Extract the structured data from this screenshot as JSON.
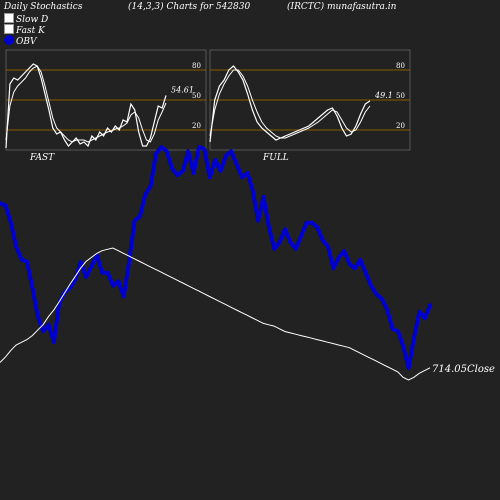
{
  "header": {
    "title": "Daily Stochastics",
    "params": "(14,3,3) Charts for 542830",
    "symbol": "(IRCTC) munafasutra.in"
  },
  "legend": [
    {
      "label": "Slow  D",
      "color": "#ffffff"
    },
    {
      "label": "Fast K",
      "color": "#ffffff"
    },
    {
      "label": "OBV",
      "color": "#0000cc"
    }
  ],
  "colors": {
    "background": "#222222",
    "panel_grid": "#8b5a00",
    "obv": "#0000cc",
    "close": "#ffffff"
  },
  "chart_data": [
    {
      "type": "line",
      "panel": "FAST",
      "title": "FAST",
      "yticks": [
        20,
        50,
        80
      ],
      "ylim": [
        0,
        100
      ],
      "last_value_label": "54.61",
      "series": [
        {
          "name": "Fast K",
          "values": [
            2,
            66,
            72,
            70,
            74,
            78,
            82,
            86,
            84,
            72,
            56,
            40,
            22,
            16,
            18,
            10,
            4,
            8,
            12,
            6,
            8,
            4,
            14,
            10,
            18,
            14,
            22,
            18,
            24,
            20,
            30,
            28,
            46,
            40,
            18,
            4,
            4,
            12,
            28,
            44,
            42,
            54.61
          ]
        },
        {
          "name": "Slow D",
          "values": [
            10,
            44,
            58,
            64,
            68,
            72,
            78,
            82,
            84,
            78,
            64,
            48,
            32,
            22,
            18,
            14,
            10,
            8,
            10,
            10,
            10,
            8,
            10,
            12,
            14,
            16,
            18,
            19,
            21,
            22,
            24,
            27,
            35,
            38,
            32,
            20,
            10,
            8,
            16,
            30,
            38,
            47
          ]
        }
      ]
    },
    {
      "type": "line",
      "panel": "FULL",
      "title": "FULL",
      "yticks": [
        20,
        50,
        80
      ],
      "ylim": [
        0,
        100
      ],
      "last_value_label": "49.1",
      "series": [
        {
          "name": "Fast K",
          "values": [
            8,
            50,
            64,
            70,
            80,
            84,
            78,
            70,
            56,
            40,
            28,
            22,
            18,
            14,
            10,
            12,
            14,
            16,
            18,
            20,
            22,
            24,
            28,
            32,
            36,
            40,
            42,
            34,
            22,
            14,
            16,
            24,
            36,
            46,
            49.1
          ]
        },
        {
          "name": "Slow D",
          "values": [
            14,
            40,
            56,
            66,
            74,
            80,
            80,
            74,
            64,
            50,
            38,
            28,
            22,
            18,
            14,
            12,
            12,
            14,
            16,
            18,
            20,
            22,
            25,
            28,
            32,
            36,
            40,
            38,
            30,
            22,
            18,
            20,
            28,
            38,
            44
          ]
        }
      ]
    },
    {
      "type": "line",
      "panel": "main",
      "last_value_label": "714.05Close",
      "series": [
        {
          "name": "OBV",
          "values": [
            74,
            73,
            65,
            54,
            48,
            47,
            35,
            22,
            15,
            18,
            10,
            28,
            33,
            35,
            39,
            47,
            40,
            45,
            50,
            42,
            42,
            36,
            38,
            31,
            47,
            66,
            68,
            78,
            82,
            97,
            100,
            98,
            90,
            87,
            89,
            98,
            88,
            100,
            99,
            86,
            94,
            89,
            96,
            98,
            92,
            86,
            88,
            80,
            66,
            77,
            63,
            53,
            56,
            62,
            56,
            53,
            59,
            65,
            65,
            63,
            57,
            54,
            44,
            49,
            52,
            46,
            44,
            48,
            42,
            36,
            32,
            30,
            25,
            16,
            15,
            8,
            -2,
            12,
            24,
            21,
            27
          ]
        },
        {
          "name": "Close",
          "values": [
            722,
            730,
            740,
            748,
            752,
            756,
            762,
            770,
            778,
            790,
            800,
            812,
            825,
            838,
            850,
            862,
            872,
            878,
            884,
            888,
            890,
            892,
            888,
            884,
            880,
            876,
            872,
            868,
            864,
            860,
            856,
            852,
            848,
            844,
            840,
            836,
            832,
            828,
            824,
            820,
            816,
            812,
            808,
            804,
            800,
            796,
            792,
            788,
            784,
            780,
            778,
            776,
            772,
            768,
            766,
            764,
            762,
            760,
            758,
            756,
            754,
            752,
            750,
            748,
            746,
            744,
            740,
            736,
            732,
            728,
            724,
            720,
            716,
            712,
            708,
            700,
            696,
            700,
            706,
            710,
            714.05
          ]
        }
      ]
    }
  ]
}
